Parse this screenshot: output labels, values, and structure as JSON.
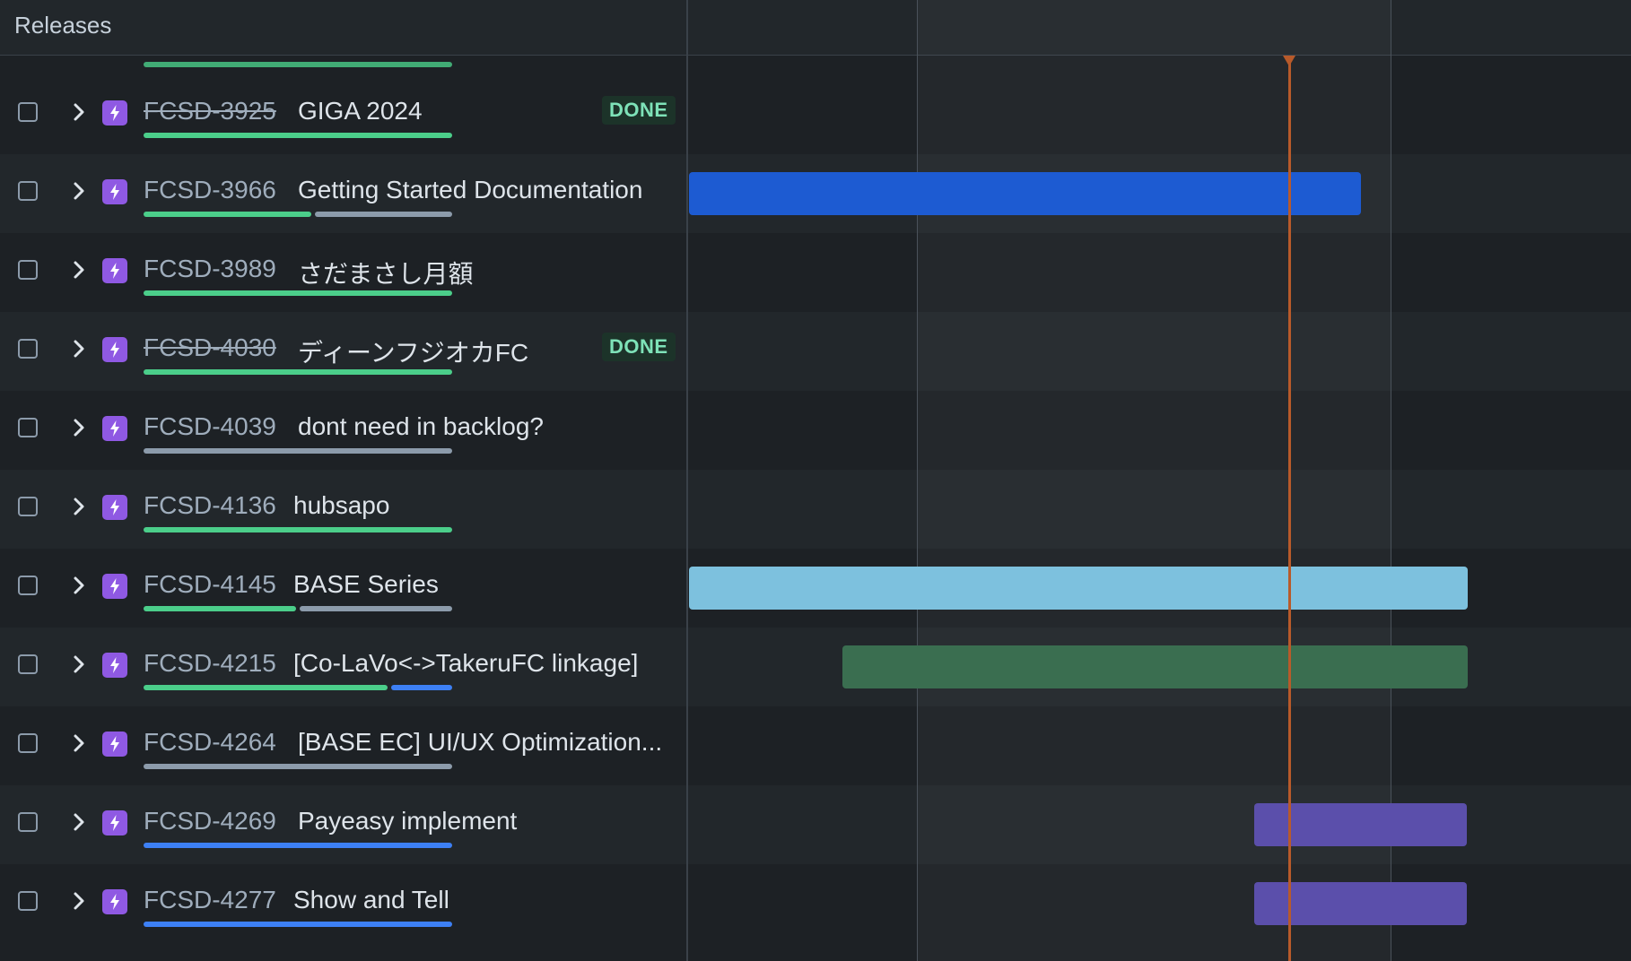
{
  "header": {
    "title": "Releases"
  },
  "colors": {
    "done": "#4bce8a",
    "todo": "#8c9bab",
    "in_progress": "#3d80f5",
    "today": "#b85a2a",
    "epic": "#8f59e3"
  },
  "rows": [
    {
      "key": "FCSD-3925",
      "title": "GIGA 2024",
      "done": true,
      "badge": "DONE",
      "progress": {
        "done": 1,
        "in_progress": 0,
        "todo": 0
      }
    },
    {
      "key": "FCSD-3966",
      "title": "Getting Started Documentation",
      "done": false,
      "progress": {
        "done": 0.55,
        "in_progress": 0,
        "todo": 0.45
      },
      "bar_color": "#1d5bd2"
    },
    {
      "key": "FCSD-3989",
      "title": "さだまさし月額",
      "done": false,
      "progress": {
        "done": 1,
        "in_progress": 0,
        "todo": 0
      }
    },
    {
      "key": "FCSD-4030",
      "title": "ディーンフジオカFC",
      "done": true,
      "badge": "DONE",
      "progress": {
        "done": 1,
        "in_progress": 0,
        "todo": 0
      }
    },
    {
      "key": "FCSD-4039",
      "title": "dont need in backlog?",
      "done": false,
      "progress": {
        "done": 0,
        "in_progress": 0,
        "todo": 1
      }
    },
    {
      "key": "FCSD-4136",
      "title": "hubsapo",
      "done": false,
      "progress": {
        "done": 1,
        "in_progress": 0,
        "todo": 0
      }
    },
    {
      "key": "FCSD-4145",
      "title": "BASE Series",
      "done": false,
      "progress": {
        "done": 0.5,
        "in_progress": 0,
        "todo": 0.5
      },
      "bar_color": "#7dc1de"
    },
    {
      "key": "FCSD-4215",
      "title": "[Co-LaVo<->TakeruFC linkage]",
      "done": false,
      "progress": {
        "done": 0.8,
        "in_progress": 0.2,
        "todo": 0
      },
      "bar_color": "#3a6e50"
    },
    {
      "key": "FCSD-4264",
      "title": "[BASE EC] UI/UX Optimization...",
      "done": false,
      "progress": {
        "done": 0,
        "in_progress": 0,
        "todo": 1
      }
    },
    {
      "key": "FCSD-4269",
      "title": "Payeasy implement",
      "done": false,
      "progress": {
        "done": 0,
        "in_progress": 1,
        "todo": 0
      },
      "bar_color": "#5b4fab"
    },
    {
      "key": "FCSD-4277",
      "title": "Show and Tell",
      "done": false,
      "progress": {
        "done": 0,
        "in_progress": 1,
        "todo": 0
      },
      "bar_color": "#5b4fab"
    }
  ]
}
